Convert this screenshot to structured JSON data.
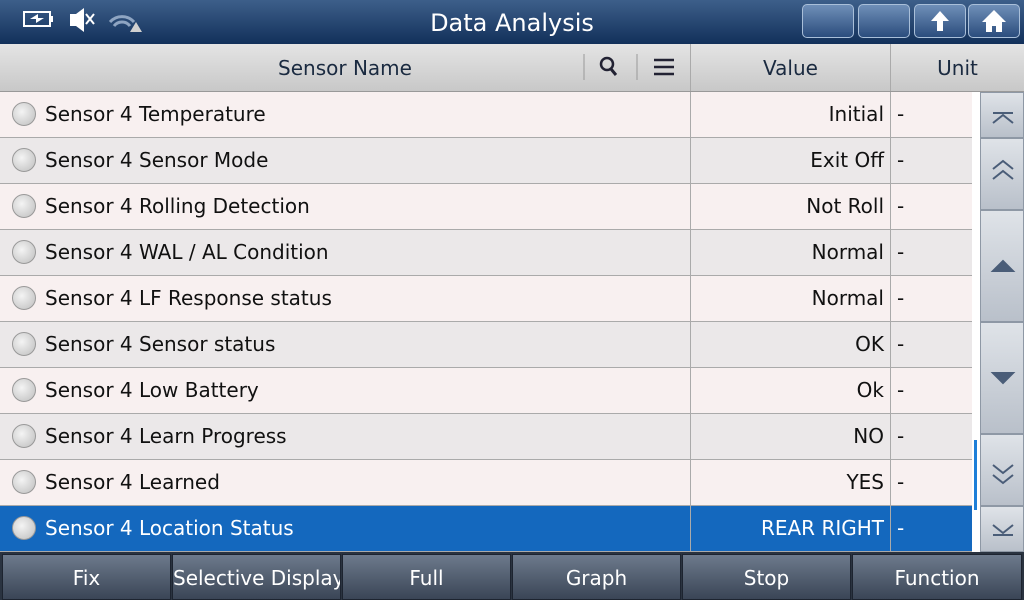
{
  "header": {
    "title": "Data Analysis"
  },
  "table": {
    "columns": [
      "Sensor Name",
      "Value",
      "Unit"
    ],
    "rows": [
      [
        "Sensor 4 Temperature",
        "Initial",
        "-"
      ],
      [
        "Sensor 4 Sensor Mode",
        "Exit Off",
        "-"
      ],
      [
        "Sensor 4 Rolling Detection",
        "Not Roll",
        "-"
      ],
      [
        "Sensor 4 WAL / AL Condition",
        "Normal",
        "-"
      ],
      [
        "Sensor 4 LF Response status",
        "Normal",
        "-"
      ],
      [
        "Sensor 4 Sensor status",
        "OK",
        "-"
      ],
      [
        "Sensor 4 Low Battery",
        "Ok",
        "-"
      ],
      [
        "Sensor 4 Learn Progress",
        "NO",
        "-"
      ],
      [
        "Sensor 4 Learned",
        "YES",
        "-"
      ],
      [
        "Sensor 4 Location Status",
        "REAR RIGHT",
        "-"
      ]
    ]
  },
  "footer": {
    "buttons": [
      "Fix",
      "Selective Display",
      "Full",
      "Graph",
      "Stop",
      "Function"
    ]
  }
}
